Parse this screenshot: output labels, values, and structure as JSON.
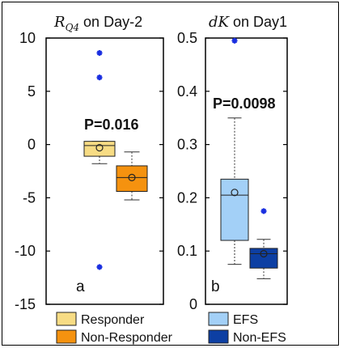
{
  "chart_data": [
    {
      "type": "box",
      "title_math": "R",
      "title_sub": "Q4",
      "title_text": "on Day-2",
      "panel_letter": "a",
      "p_value": "P=0.016",
      "ylim": [
        -15,
        10
      ],
      "yticks": [
        -15,
        -10,
        -5,
        0,
        5,
        10
      ],
      "ytick_labels": [
        "-15",
        "-10",
        "-5",
        "0",
        "5",
        "10"
      ],
      "groups": [
        {
          "name": "Responder",
          "color": "#f7dc84",
          "whisker_low": -1.8,
          "q1": -1.1,
          "median": -0.1,
          "q3": 0.3,
          "whisker_high": 0.3,
          "mean": -0.3,
          "outliers": [
            8.6,
            6.3,
            -11.5
          ]
        },
        {
          "name": "Non-Responder",
          "color": "#f5920f",
          "whisker_low": -5.2,
          "q1": -4.4,
          "median": -3.1,
          "q3": -2.0,
          "whisker_high": -0.7,
          "mean": -3.1,
          "outliers": []
        }
      ]
    },
    {
      "type": "box",
      "title_math": "dK",
      "title_sub": "",
      "title_text": "on Day1",
      "panel_letter": "b",
      "p_value": "P=0.0098",
      "ylim": [
        0,
        0.5
      ],
      "yticks": [
        0,
        0.1,
        0.2,
        0.3,
        0.4,
        0.5
      ],
      "ytick_labels": [
        "0",
        "0.1",
        "0.2",
        "0.3",
        "0.4",
        "0.5"
      ],
      "groups": [
        {
          "name": "EFS",
          "color": "#a3d0f7",
          "whisker_low": 0.075,
          "q1": 0.12,
          "median": 0.205,
          "q3": 0.235,
          "whisker_high": 0.35,
          "mean": 0.21,
          "outliers": [
            0.495
          ]
        },
        {
          "name": "Non-EFS",
          "color": "#0d3fa3",
          "whisker_low": 0.048,
          "q1": 0.068,
          "median": 0.095,
          "q3": 0.105,
          "whisker_high": 0.122,
          "mean": 0.095,
          "outliers": [
            0.175
          ]
        }
      ]
    }
  ]
}
